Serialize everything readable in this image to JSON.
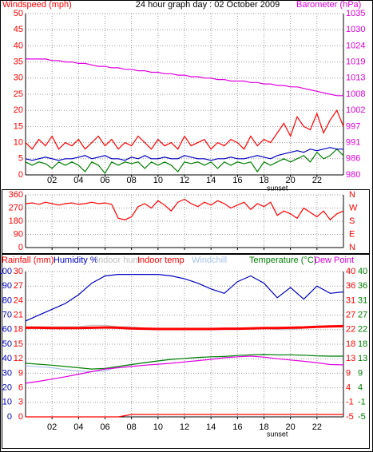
{
  "chart_data": [
    {
      "type": "line",
      "title": "24 hour graph day : 02 October 2009",
      "x": [
        0,
        0.5,
        1,
        1.5,
        2,
        2.5,
        3,
        3.5,
        4,
        4.5,
        5,
        5.5,
        6,
        6.5,
        7,
        7.5,
        8,
        8.5,
        9,
        9.5,
        10,
        10.5,
        11,
        11.5,
        12,
        12.5,
        13,
        13.5,
        14,
        14.5,
        15,
        15.5,
        16,
        16.5,
        17,
        17.5,
        18,
        18.5,
        19,
        19.5,
        20,
        20.5,
        21,
        21.5,
        22,
        22.5,
        23,
        23.5,
        24
      ],
      "xlim": [
        0,
        24
      ],
      "xticks": [
        {
          "value": 2,
          "label": "02"
        },
        {
          "value": 4,
          "label": "04"
        },
        {
          "value": 6,
          "label": "06"
        },
        {
          "value": 8,
          "label": "08"
        },
        10,
        12,
        14,
        16,
        18,
        20,
        22
      ],
      "annotations": [
        {
          "text": "sunset",
          "x": 19
        }
      ],
      "grid": true,
      "axes": {
        "y": {
          "label": "Windspeed (mph)",
          "color": "#ff0000",
          "lim": [
            0,
            50
          ],
          "ticks": [
            0,
            5,
            10,
            15,
            20,
            25,
            30,
            35,
            40,
            45,
            50
          ]
        },
        "y2": {
          "label": "Barometer (hPa)",
          "color": "#e000e0",
          "lim": [
            980,
            1035
          ],
          "ticks": [
            980,
            {
              "value": 985.5,
              "label": "986"
            },
            991,
            {
              "value": 996.5,
              "label": "997"
            },
            1002,
            {
              "value": 1007.5,
              "label": "1008"
            },
            1013,
            {
              "value": 1018.5,
              "label": "1019"
            },
            1024,
            {
              "value": 1029.5,
              "label": "1030"
            },
            1035
          ]
        }
      },
      "series": [
        {
          "color": "#ff0000",
          "axis": "y",
          "values": [
            10,
            8,
            11,
            9,
            12,
            8,
            10,
            9,
            11,
            8,
            10,
            12,
            9,
            11,
            8,
            10,
            9,
            12,
            10,
            8,
            11,
            9,
            10,
            8,
            12,
            9,
            10,
            11,
            8,
            10,
            9,
            11,
            10,
            8,
            12,
            9,
            11,
            10,
            13,
            16,
            12,
            18,
            15,
            14,
            19,
            13,
            17,
            20,
            15
          ]
        },
        {
          "color": "#008000",
          "axis": "y",
          "values": [
            4,
            3,
            4,
            3.5,
            2,
            4,
            3,
            4,
            3,
            1,
            4,
            3,
            0.5,
            4,
            3,
            4,
            3.5,
            4,
            2,
            4,
            3,
            4,
            3,
            1,
            4,
            3.5,
            4,
            3,
            4,
            2,
            4,
            3,
            4,
            3.5,
            4,
            1,
            4,
            3,
            4,
            5,
            4,
            5,
            6,
            4,
            7,
            5,
            6,
            8,
            6
          ]
        },
        {
          "color": "#0000c0",
          "axis": "y",
          "values": [
            5,
            4.5,
            5,
            5.5,
            5,
            4.5,
            5,
            5,
            5.5,
            6,
            5,
            5.5,
            6,
            5,
            5,
            4.5,
            5.5,
            5,
            6,
            5,
            5,
            5.5,
            5,
            5,
            6,
            5.5,
            5,
            5,
            4.5,
            5,
            5,
            5.5,
            5,
            5,
            5.5,
            6,
            5.5,
            5,
            6,
            6.5,
            7,
            7.5,
            7,
            8,
            7.5,
            8,
            8.5,
            8,
            8
          ]
        },
        {
          "color": "#e000e0",
          "axis": "y2",
          "values": [
            1019.5,
            1019.5,
            1019.5,
            1019.5,
            1019,
            1019,
            1018.5,
            1018.5,
            1018,
            1018,
            1017.5,
            1017,
            1017,
            1016.5,
            1016.5,
            1016,
            1016,
            1015.5,
            1015.5,
            1015,
            1015,
            1014.5,
            1014.5,
            1014,
            1014,
            1013.5,
            1013.5,
            1013,
            1013,
            1012.5,
            1012.5,
            1012,
            1012,
            1012,
            1011.5,
            1011.5,
            1011,
            1011,
            1010.5,
            1010.5,
            1010,
            1010,
            1009.5,
            1009,
            1008.5,
            1008,
            1007.5,
            1007,
            1007
          ]
        }
      ]
    },
    {
      "type": "line",
      "x": [
        0,
        0.5,
        1,
        1.5,
        2,
        2.5,
        3,
        3.5,
        4,
        4.5,
        5,
        5.5,
        6,
        6.5,
        7,
        7.5,
        8,
        8.5,
        9,
        9.5,
        10,
        10.5,
        11,
        11.5,
        12,
        12.5,
        13,
        13.5,
        14,
        14.5,
        15,
        15.5,
        16,
        16.5,
        17,
        17.5,
        18,
        18.5,
        19,
        19.5,
        20,
        20.5,
        21,
        21.5,
        22,
        22.5,
        23,
        23.5,
        24
      ],
      "xlim": [
        0,
        24
      ],
      "grid": true,
      "axes": {
        "y": {
          "color": "#ff0000",
          "lim": [
            0,
            360
          ],
          "ticks": [
            0,
            90,
            180,
            270,
            360
          ]
        },
        "y2": {
          "color": "#ff0000",
          "lim": [
            0,
            360
          ],
          "ticks": [
            {
              "value": 0,
              "label": "N"
            },
            {
              "value": 90,
              "label": "E"
            },
            {
              "value": 180,
              "label": "S"
            },
            {
              "value": 270,
              "label": "W"
            },
            {
              "value": 360,
              "label": "N"
            }
          ]
        }
      },
      "series": [
        {
          "color": "#ff0000",
          "axis": "y",
          "values": [
            300,
            305,
            295,
            310,
            300,
            290,
            300,
            305,
            295,
            300,
            310,
            300,
            305,
            295,
            200,
            190,
            210,
            280,
            300,
            270,
            320,
            290,
            250,
            310,
            330,
            300,
            280,
            310,
            290,
            320,
            300,
            270,
            290,
            310,
            260,
            300,
            280,
            310,
            220,
            250,
            230,
            200,
            270,
            240,
            210,
            250,
            190,
            230,
            250
          ]
        }
      ]
    },
    {
      "type": "line",
      "x": [
        0,
        1,
        2,
        3,
        4,
        5,
        6,
        7,
        8,
        9,
        10,
        11,
        12,
        13,
        14,
        15,
        16,
        17,
        18,
        19,
        20,
        21,
        22,
        23,
        24
      ],
      "xlim": [
        0,
        24
      ],
      "xticks": [
        {
          "value": 2,
          "label": "02"
        },
        {
          "value": 4,
          "label": "04"
        },
        {
          "value": 6,
          "label": "06"
        },
        {
          "value": 8,
          "label": "08"
        },
        10,
        12,
        14,
        16,
        18,
        20,
        22
      ],
      "annotations": [
        {
          "text": "sunset",
          "x": 19
        }
      ],
      "grid": true,
      "axes": {
        "humidity": {
          "color": "#0000c0",
          "lim": [
            0,
            100
          ],
          "ticks": [
            0,
            10,
            20,
            30,
            40,
            50,
            60,
            70,
            80,
            90,
            100
          ]
        },
        "rainfall": {
          "color": "#ff0000",
          "lim": [
            0,
            30
          ],
          "ticks": [
            0,
            3,
            6,
            9,
            12,
            15,
            18,
            21,
            24,
            27,
            30
          ]
        },
        "indoor_temp": {
          "color": "#ff0000",
          "lim": [
            -5,
            40
          ],
          "ticks": [
            -5,
            {
              "value": -0.5,
              "label": "-1"
            },
            4,
            {
              "value": 8.5,
              "label": "9"
            },
            13,
            {
              "value": 17.5,
              "label": "18"
            },
            22,
            {
              "value": 26.5,
              "label": "27"
            },
            31,
            {
              "value": 35.5,
              "label": "36"
            },
            40
          ]
        },
        "temperature": {
          "color": "#008000",
          "lim": [
            -5,
            40
          ],
          "ticks": [
            -5,
            {
              "value": -0.5,
              "label": "-1"
            },
            4,
            {
              "value": 8.5,
              "label": "9"
            },
            13,
            {
              "value": 17.5,
              "label": "18"
            },
            22,
            {
              "value": 26.5,
              "label": "27"
            },
            31,
            {
              "value": 35.5,
              "label": "36"
            },
            40
          ]
        }
      },
      "series": [
        {
          "name": "Rainfall (mm)",
          "color": "#ff0000",
          "axis": "rainfall",
          "values": [
            0,
            0,
            0,
            0,
            0,
            0,
            0,
            0,
            0.5,
            0.5,
            0.5,
            0.5,
            0.5,
            0.5,
            0.5,
            0.5,
            0.5,
            0.5,
            0.5,
            0.5,
            0.5,
            0.5,
            0.5,
            0.5,
            0.5
          ]
        },
        {
          "name": "Humidity %",
          "color": "#0000c0",
          "axis": "humidity",
          "values": [
            66,
            70,
            74,
            78,
            84,
            92,
            97,
            98,
            98,
            98,
            98,
            97,
            95,
            92,
            88,
            85,
            93,
            97,
            92,
            82,
            89,
            81,
            90,
            85,
            86
          ]
        },
        {
          "name": "Indoor hum",
          "color": "#c0c0c0",
          "axis": "humidity",
          "values": [
            62,
            62,
            62,
            62,
            62,
            63,
            63,
            62,
            62,
            61,
            61,
            61,
            61,
            61,
            61,
            61,
            61,
            61,
            61,
            60,
            60,
            61,
            62,
            62,
            62
          ]
        },
        {
          "name": "Indoor temp",
          "color": "#ff0000",
          "axis": "indoor_temp",
          "width": 3,
          "values": [
            22.6,
            22.6,
            22.5,
            22.5,
            22.5,
            22.6,
            22.7,
            22.6,
            22.4,
            22.3,
            22.2,
            22.2,
            22.2,
            22.2,
            22.2,
            22.3,
            22.3,
            22.4,
            22.5,
            22.5,
            22.6,
            22.7,
            22.9,
            23.0,
            23.1
          ]
        },
        {
          "name": "Windchill",
          "color": "#a8c4e8",
          "axis": "temperature",
          "values": [
            10.8,
            10.5,
            10.2,
            9.6,
            9.2,
            9.1,
            9.2,
            10.6,
            11.2,
            11.8,
            12.3,
            12.8,
            13.1,
            13.4,
            13.6,
            13.7,
            14,
            14.2,
            14.3,
            14.2,
            14.2,
            14.1,
            13.9,
            13.8,
            13.8
          ]
        },
        {
          "name": "Temperature (°C)",
          "color": "#008000",
          "axis": "temperature",
          "values": [
            11.6,
            11.3,
            11,
            10.6,
            10.2,
            9.8,
            10,
            10.6,
            11.2,
            11.8,
            12.3,
            12.8,
            13.1,
            13.4,
            13.6,
            13.7,
            14,
            14.2,
            14.3,
            14.2,
            14.2,
            14.1,
            13.9,
            13.8,
            13.8
          ]
        },
        {
          "name": "Dew Point",
          "color": "#e000e0",
          "axis": "temperature",
          "values": [
            5.4,
            6,
            6.7,
            7.4,
            8.2,
            9,
            9.8,
            10.2,
            10.6,
            11,
            11.3,
            11.6,
            12,
            12.4,
            12.8,
            13.3,
            13.6,
            13.8,
            13.5,
            13,
            12.6,
            12.2,
            11.8,
            11.2,
            11.1
          ]
        }
      ]
    }
  ]
}
